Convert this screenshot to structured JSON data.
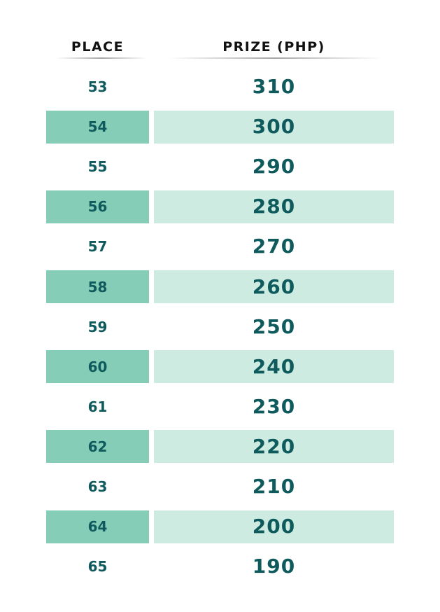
{
  "table": {
    "headers": [
      "PLACE",
      "PRIZE (PHP)"
    ],
    "rows": [
      [
        53,
        310
      ],
      [
        54,
        300
      ],
      [
        55,
        290
      ],
      [
        56,
        280
      ],
      [
        57,
        270
      ],
      [
        58,
        260
      ],
      [
        59,
        250
      ],
      [
        60,
        240
      ],
      [
        61,
        230
      ],
      [
        62,
        220
      ],
      [
        63,
        210
      ],
      [
        64,
        200
      ],
      [
        65,
        190
      ]
    ]
  }
}
